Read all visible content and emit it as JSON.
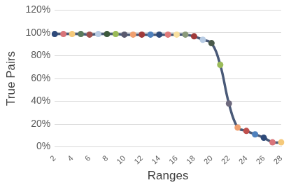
{
  "chart_data": {
    "type": "line",
    "x_label": "Ranges",
    "y_label": "True Pairs",
    "categories": [
      "2",
      null,
      "4",
      null,
      "6",
      null,
      "8",
      null,
      "10",
      null,
      "12",
      null,
      "14",
      null,
      "16",
      null,
      "18",
      null,
      "20",
      null,
      "22",
      null,
      "24",
      null,
      "26",
      null,
      "28"
    ],
    "values": [
      99,
      99,
      99,
      99,
      98.5,
      99,
      99,
      99,
      98.5,
      98.5,
      98.5,
      98.5,
      98.5,
      98.5,
      98.5,
      98.5,
      97,
      94,
      91,
      72,
      38,
      17,
      14,
      11,
      8,
      4,
      4
    ],
    "color": "#4a5a78",
    "colors": [
      "#2e4a7a",
      "#d9757a",
      "#f5c97a",
      "#5a7a5c",
      "#a0504d",
      "#b8cce4",
      "#3d5a3d",
      "#9bbb59",
      "#5a5a6e",
      "#f0a070",
      "#a03a3a",
      "#4f81bd",
      "#2e4a7a",
      "#e07a7a",
      "#f8e0a0",
      "#8a9a7a",
      "#a03a3a",
      "#b8cce4",
      "#4a5a4a",
      "#9bbb59",
      "#6e6a7e",
      "#f0a070",
      "#c0504d",
      "#4f81bd",
      "#2e4a7a",
      "#d9757a",
      "#f5c97a"
    ],
    "marker": "circle",
    "line_style": "solid",
    "ylim": [
      0,
      120
    ],
    "yticks": [
      {
        "value": 0,
        "label": "0%"
      },
      {
        "value": 20,
        "label": "20%"
      },
      {
        "value": 40,
        "label": "40%"
      },
      {
        "value": 60,
        "label": "60%"
      },
      {
        "value": 80,
        "label": "80%"
      },
      {
        "value": 100,
        "label": "100%"
      },
      {
        "value": 120,
        "label": "120%"
      }
    ],
    "grid": true
  }
}
